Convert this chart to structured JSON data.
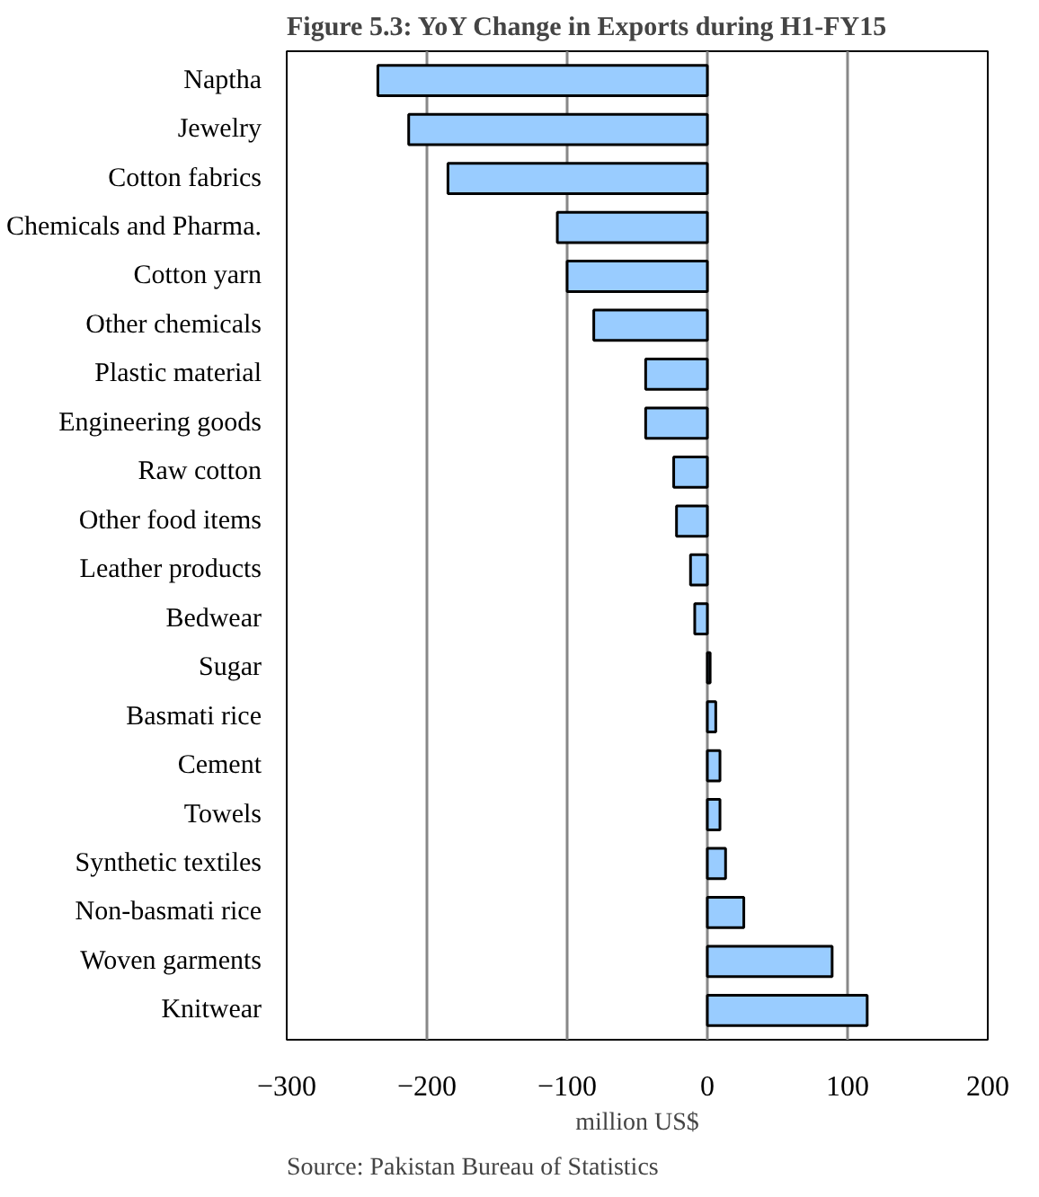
{
  "chart_data": {
    "type": "bar",
    "orientation": "horizontal",
    "title": "Figure 5.3: YoY Change in Exports  during H1-FY15",
    "xlabel": "million US$",
    "categories": [
      "Naptha",
      "Jewelry",
      "Cotton fabrics",
      "Chemicals and Pharma.",
      "Cotton yarn",
      "Other chemicals",
      "Plastic material",
      "Engineering goods",
      "Raw cotton",
      "Other food items",
      "Leather products",
      "Bedwear",
      "Sugar",
      "Basmati rice",
      "Cement",
      "Towels",
      "Synthetic textiles",
      "Non-basmati rice",
      "Woven garments",
      "Knitwear"
    ],
    "values": [
      -235,
      -213,
      -185,
      -107,
      -100,
      -81,
      -44,
      -44,
      -24,
      -22,
      -12,
      -9,
      2,
      6,
      9,
      9,
      13,
      26,
      89,
      114
    ],
    "color": "#99ccff",
    "xlim": [
      -300,
      200
    ],
    "xticks": [
      -300,
      -200,
      -100,
      0,
      100,
      200
    ],
    "grid": "x",
    "annotations": [
      "Source: Pakistan Bureau of Statistics"
    ]
  }
}
